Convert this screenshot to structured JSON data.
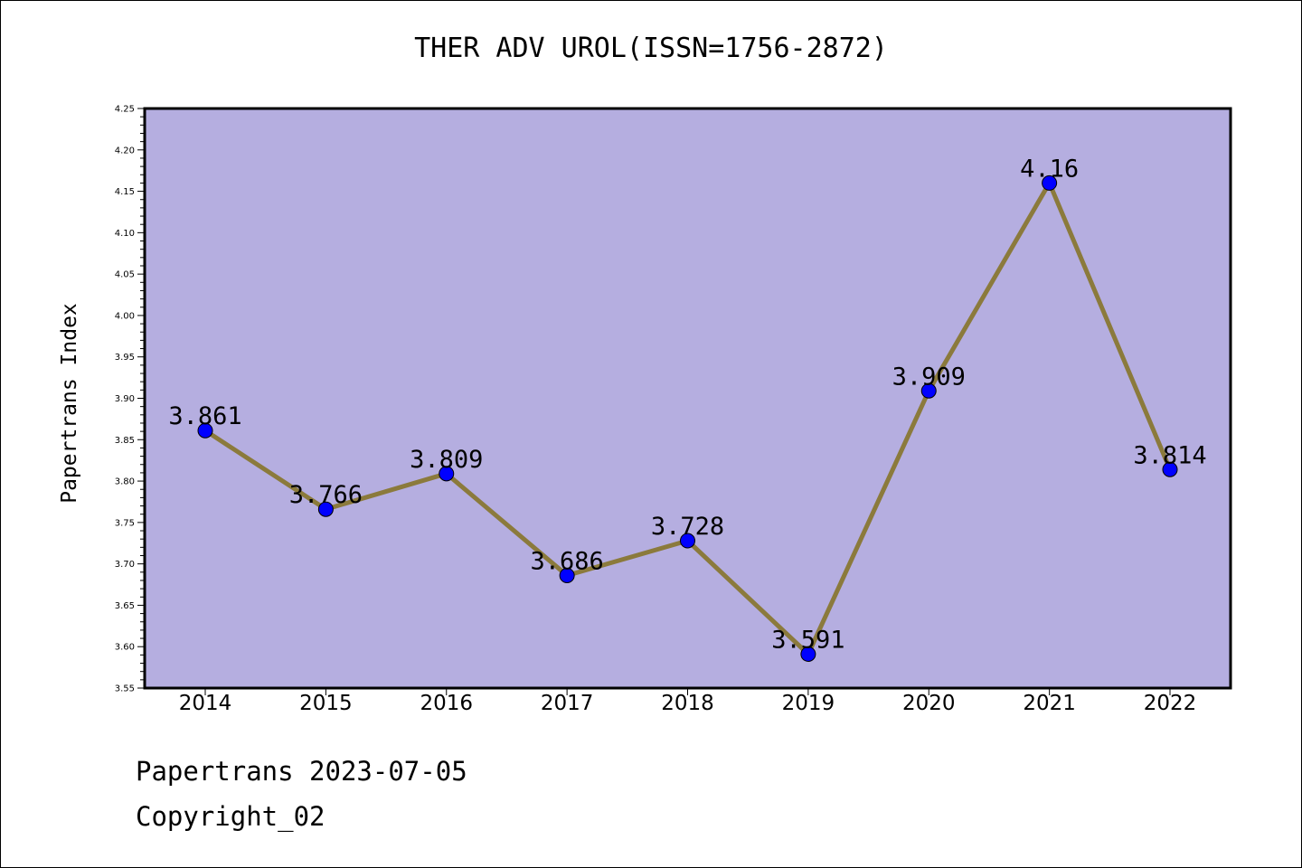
{
  "chart_data": {
    "type": "line",
    "title": "THER ADV UROL(ISSN=1756-2872)",
    "xlabel": "",
    "ylabel": "Papertrans Index",
    "categories": [
      "2014",
      "2015",
      "2016",
      "2017",
      "2018",
      "2019",
      "2020",
      "2021",
      "2022"
    ],
    "series": [
      {
        "values": [
          3.861,
          3.766,
          3.809,
          3.686,
          3.728,
          3.591,
          3.909,
          4.16,
          3.814
        ],
        "labels": [
          "3.861",
          "3.766",
          "3.809",
          "3.686",
          "3.728",
          "3.591",
          "3.909",
          "4.16",
          "3.814"
        ]
      }
    ],
    "ylim": [
      3.55,
      4.25
    ],
    "yticks": [
      "3.55",
      "3.60",
      "3.65",
      "3.70",
      "3.75",
      "3.80",
      "3.85",
      "3.90",
      "3.95",
      "4.00",
      "4.05",
      "4.10",
      "4.15",
      "4.20",
      "4.25"
    ],
    "grid": false,
    "colors": {
      "plot_background": "#b5aee0",
      "line": "#8b7a3c",
      "marker": "#0000ff"
    }
  },
  "footer": {
    "source": "Papertrans 2023-07-05",
    "copyright": "Copyright_02"
  }
}
